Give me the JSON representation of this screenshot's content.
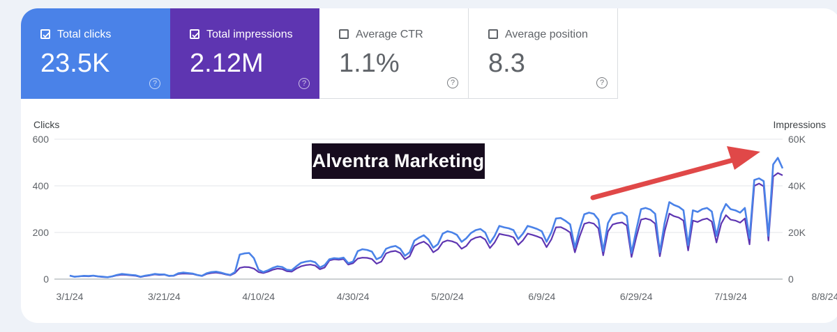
{
  "metrics": [
    {
      "label": "Total clicks",
      "value": "23.5K",
      "checked": true
    },
    {
      "label": "Total impressions",
      "value": "2.12M",
      "checked": true
    },
    {
      "label": "Average CTR",
      "value": "1.1%",
      "checked": false
    },
    {
      "label": "Average position",
      "value": "8.3",
      "checked": false
    }
  ],
  "logo_text": "Alventra Marketing",
  "colors": {
    "clicks": "#4a82e8",
    "impressions": "#5e35b1",
    "arrow": "#e04848"
  },
  "chart_data": {
    "type": "line",
    "xlabel_ticks": [
      "3/1/24",
      "3/21/24",
      "4/10/24",
      "4/30/24",
      "5/20/24",
      "6/9/24",
      "6/29/24",
      "7/19/24",
      "8/8/24"
    ],
    "y_left": {
      "title": "Clicks",
      "range": [
        0,
        600
      ],
      "ticks": [
        "0",
        "200",
        "400",
        "600"
      ]
    },
    "y_right": {
      "title": "Impressions",
      "range": [
        0,
        60000
      ],
      "ticks": [
        "0",
        "20K",
        "40K",
        "60K"
      ]
    },
    "grid": true,
    "x_start": "2024-03-01",
    "x_end": "2024-08-17",
    "series": [
      {
        "name": "Clicks",
        "axis": "left",
        "color": "#4a82e8",
        "values": [
          15,
          10,
          12,
          14,
          13,
          15,
          12,
          10,
          8,
          12,
          18,
          22,
          20,
          18,
          16,
          10,
          15,
          18,
          22,
          20,
          20,
          14,
          15,
          25,
          28,
          26,
          24,
          18,
          14,
          25,
          30,
          32,
          28,
          22,
          18,
          30,
          105,
          110,
          112,
          90,
          40,
          30,
          38,
          48,
          55,
          52,
          40,
          38,
          55,
          70,
          75,
          78,
          72,
          50,
          60,
          85,
          90,
          88,
          92,
          68,
          75,
          120,
          128,
          125,
          118,
          85,
          95,
          130,
          138,
          142,
          130,
          100,
          115,
          165,
          178,
          188,
          170,
          135,
          150,
          195,
          205,
          200,
          190,
          160,
          175,
          198,
          210,
          215,
          200,
          155,
          185,
          228,
          222,
          218,
          210,
          172,
          195,
          228,
          222,
          215,
          205,
          160,
          200,
          260,
          262,
          250,
          235,
          135,
          215,
          278,
          285,
          280,
          255,
          120,
          240,
          275,
          282,
          285,
          270,
          112,
          210,
          300,
          305,
          298,
          280,
          115,
          240,
          330,
          318,
          310,
          295,
          145,
          295,
          288,
          300,
          305,
          290,
          185,
          280,
          322,
          300,
          295,
          285,
          305,
          175,
          425,
          432,
          420,
          185,
          492,
          520,
          475
        ]
      },
      {
        "name": "Impressions",
        "axis": "right",
        "color": "#5e35b1",
        "values": [
          1500,
          1000,
          1200,
          1300,
          1200,
          1400,
          1100,
          900,
          800,
          1100,
          1600,
          1900,
          1800,
          1600,
          1400,
          900,
          1300,
          1600,
          2000,
          1800,
          1900,
          1300,
          1400,
          2200,
          2400,
          2300,
          2200,
          1700,
          1300,
          2200,
          2600,
          2800,
          2500,
          2000,
          1600,
          2600,
          4800,
          5200,
          5100,
          4500,
          3000,
          2600,
          3200,
          4000,
          4500,
          4300,
          3400,
          3200,
          4500,
          5500,
          6000,
          6200,
          5800,
          4200,
          5000,
          8000,
          8500,
          8300,
          8600,
          6200,
          6800,
          8800,
          9200,
          9100,
          8600,
          6600,
          7500,
          11000,
          11800,
          12100,
          11200,
          8500,
          9800,
          14200,
          15300,
          16100,
          14600,
          11500,
          12800,
          15800,
          16600,
          16200,
          15400,
          13000,
          14200,
          16800,
          17800,
          18200,
          17000,
          13300,
          15700,
          19400,
          19000,
          18600,
          17900,
          14700,
          16600,
          19500,
          19000,
          18300,
          17500,
          13700,
          17000,
          22200,
          22300,
          21300,
          20000,
          11500,
          18300,
          23700,
          24300,
          23800,
          21700,
          10200,
          20400,
          23400,
          24000,
          24300,
          23000,
          9500,
          17900,
          25500,
          26000,
          25400,
          23800,
          9800,
          20400,
          28100,
          27000,
          26400,
          25100,
          12300,
          25100,
          24500,
          25500,
          26000,
          24700,
          15700,
          23800,
          27400,
          25500,
          25100,
          24200,
          26000,
          14900,
          40000,
          41000,
          39800,
          16500,
          44000,
          45500,
          44500
        ]
      }
    ]
  }
}
